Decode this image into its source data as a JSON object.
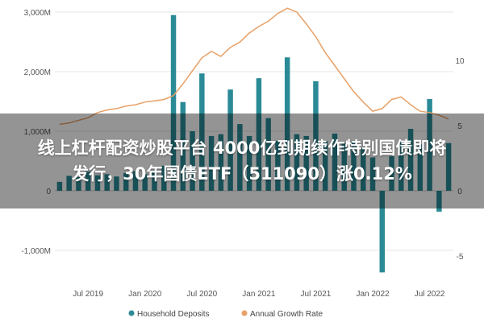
{
  "chart_data": {
    "type": "bar",
    "left_axis": {
      "ticks": [
        {
          "value": 3000,
          "label": "3,000M"
        },
        {
          "value": 2000,
          "label": "2,000M"
        },
        {
          "value": 1000,
          "label": "1,000M"
        },
        {
          "value": 0,
          "label": "0"
        },
        {
          "value": -1000,
          "label": "-1,000M"
        }
      ],
      "range": [
        -1300,
        3100
      ]
    },
    "right_axis": {
      "ticks": [
        {
          "value": 10,
          "label": "10"
        },
        {
          "value": 5,
          "label": "5"
        },
        {
          "value": 0,
          "label": "0"
        },
        {
          "value": -5,
          "label": "-5"
        }
      ],
      "range": [
        -7,
        14
      ]
    },
    "x_ticks": [
      {
        "index": 3,
        "label": "Jul 2019"
      },
      {
        "index": 9,
        "label": "Jan 2020"
      },
      {
        "index": 15,
        "label": "Jul 2020"
      },
      {
        "index": 21,
        "label": "Jan 2021"
      },
      {
        "index": 27,
        "label": "Jul 2021"
      },
      {
        "index": 33,
        "label": "Jan 2022"
      },
      {
        "index": 39,
        "label": "Jul 2022"
      }
    ],
    "series": [
      {
        "name": "Household Deposits",
        "type": "bar",
        "axis": "left",
        "color": "#2a8a96",
        "values": [
          150,
          250,
          230,
          320,
          260,
          280,
          240,
          300,
          330,
          280,
          340,
          420,
          2950,
          1490,
          1000,
          1970,
          920,
          950,
          1700,
          1120,
          920,
          1890,
          1220,
          840,
          2240,
          950,
          920,
          1840,
          830,
          960,
          800,
          820,
          720,
          560,
          -1370,
          580,
          820,
          1040,
          780,
          1540,
          -350,
          800
        ]
      },
      {
        "name": "Annual Growth Rate",
        "type": "line",
        "axis": "right",
        "color": "#e8a066",
        "values": [
          5.1,
          5.2,
          5.4,
          5.6,
          6.0,
          6.2,
          6.3,
          6.5,
          6.6,
          6.8,
          6.9,
          7.0,
          7.3,
          8.2,
          9.2,
          10.2,
          10.7,
          10.3,
          11.0,
          11.4,
          12.1,
          12.6,
          13.0,
          13.6,
          14.0,
          13.7,
          12.8,
          11.8,
          10.6,
          9.6,
          8.6,
          7.6,
          6.8,
          6.1,
          6.3,
          7.0,
          7.2,
          6.6,
          6.1,
          6.0,
          5.8,
          5.5
        ]
      }
    ],
    "legend": {
      "placement": "bottom"
    }
  },
  "overlay": {
    "line1": "线上杠杆配资炒股平台 4000亿到期续作特别国债即将",
    "line2": "发行，30年国债ETF（511090）涨0.12%"
  },
  "colors": {
    "bar": "#2a8a96",
    "line": "#e8a066"
  }
}
